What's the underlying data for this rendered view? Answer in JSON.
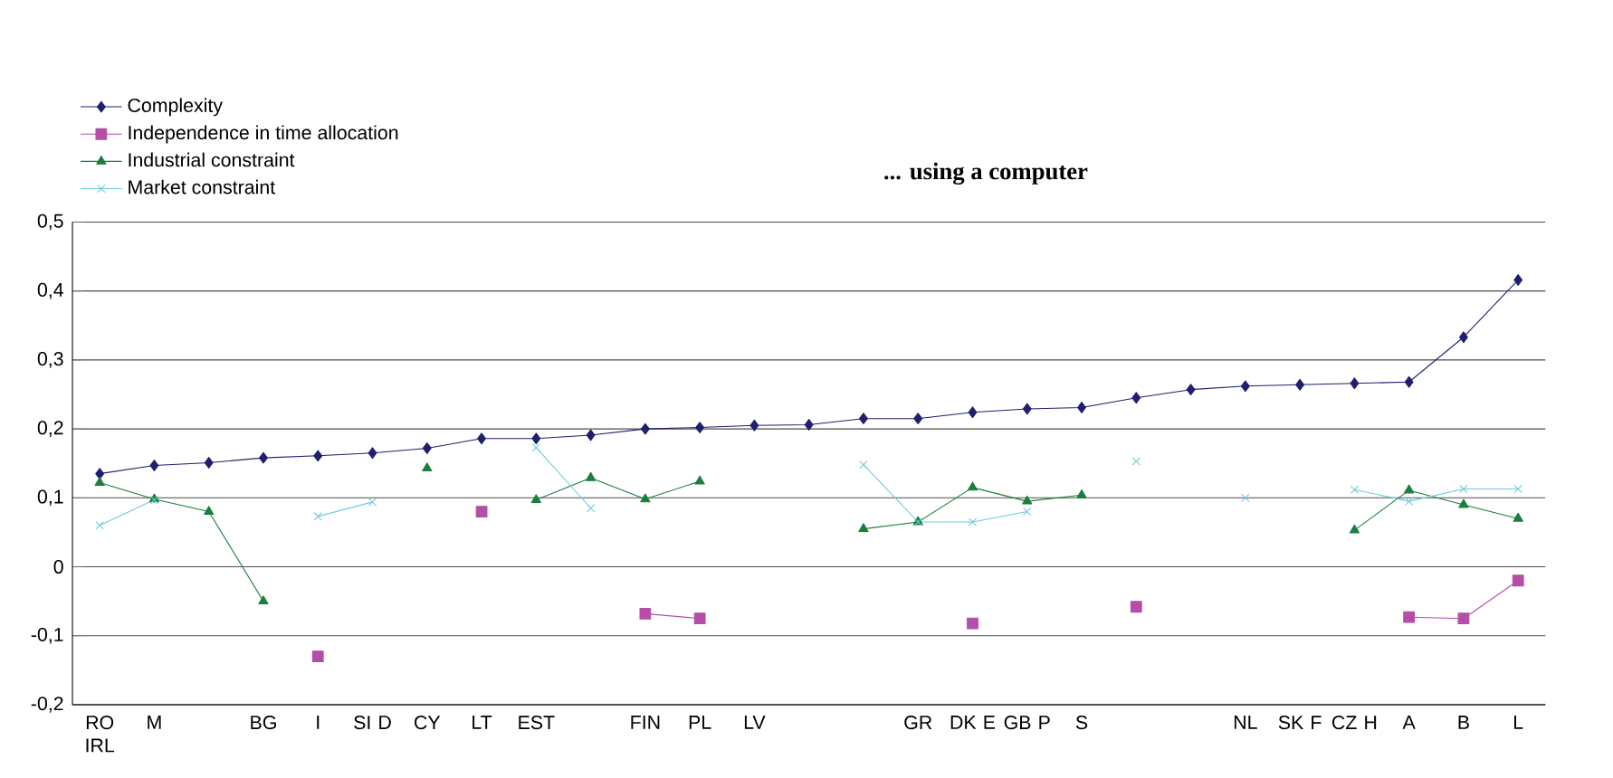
{
  "chart_data": {
    "type": "line",
    "title": "... using a computer",
    "categories": [
      "RO IRL",
      "M",
      null,
      "BG",
      "I",
      "SI D",
      "CY",
      "LT",
      "EST",
      null,
      "FIN",
      "PL",
      "LV",
      null,
      null,
      "GR",
      "DK E",
      "GB P",
      "S",
      null,
      null,
      "NL",
      "SK F",
      "CZ H",
      "A",
      "B",
      "L"
    ],
    "series": [
      {
        "name": "Complexity",
        "color": "#1f1f6e",
        "marker": "diamond",
        "values": [
          0.135,
          0.147,
          0.151,
          0.158,
          0.161,
          0.165,
          0.172,
          0.186,
          0.186,
          0.191,
          0.2,
          0.202,
          0.205,
          0.206,
          0.215,
          0.215,
          0.224,
          0.229,
          0.231,
          0.245,
          0.257,
          0.262,
          0.264,
          0.266,
          0.268,
          0.333,
          0.416
        ]
      },
      {
        "name": "Independence in time allocation",
        "color": "#b44ea6",
        "marker": "square",
        "values": [
          null,
          null,
          null,
          null,
          -0.13,
          null,
          null,
          0.08,
          null,
          null,
          -0.068,
          -0.075,
          null,
          null,
          null,
          null,
          -0.082,
          null,
          null,
          -0.058,
          null,
          null,
          null,
          null,
          -0.073,
          -0.075,
          -0.02
        ]
      },
      {
        "name": "Industrial constraint",
        "color": "#1a7f3c",
        "marker": "triangle",
        "values": [
          0.122,
          0.098,
          0.08,
          -0.05,
          null,
          null,
          0.143,
          null,
          0.097,
          0.129,
          0.098,
          0.124,
          null,
          null,
          0.055,
          0.065,
          0.115,
          0.095,
          0.104,
          null,
          null,
          null,
          null,
          0.053,
          0.111,
          0.09,
          0.07
        ]
      },
      {
        "name": "Market constraint",
        "color": "#6fcbdc",
        "marker": "cross",
        "values": [
          0.06,
          0.097,
          null,
          null,
          0.073,
          0.094,
          null,
          null,
          0.173,
          0.085,
          null,
          null,
          null,
          null,
          0.148,
          0.065,
          0.065,
          0.08,
          null,
          0.153,
          null,
          0.1,
          null,
          0.112,
          0.095,
          0.113,
          0.113
        ]
      }
    ],
    "ylim": [
      -0.2,
      0.5
    ],
    "yticks": [
      {
        "value": -0.2,
        "label": "-0,2"
      },
      {
        "value": -0.1,
        "label": "-0,1"
      },
      0,
      {
        "value": 0.1,
        "label": "0,1"
      },
      {
        "value": 0.2,
        "label": "0,2"
      },
      {
        "value": 0.3,
        "label": "0,3"
      },
      {
        "value": 0.4,
        "label": "0,4"
      },
      {
        "value": 0.5,
        "label": "0,5"
      }
    ],
    "grid": "y",
    "legend": "top left",
    "line_style": "solid"
  }
}
